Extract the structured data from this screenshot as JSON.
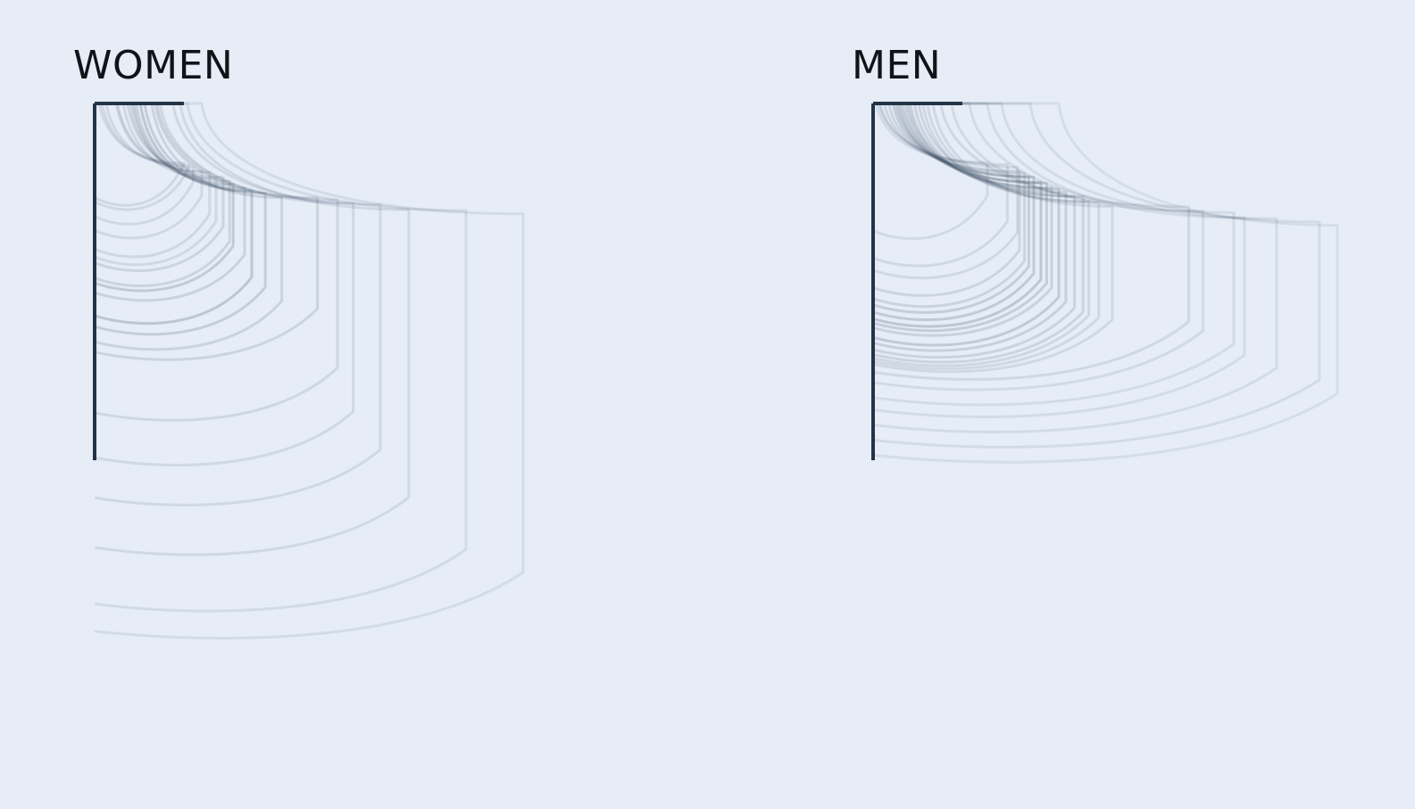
{
  "colors": {
    "background": "#e6edf7",
    "axis": "#243447",
    "curve": "#2f4257"
  },
  "chart_data": [
    {
      "type": "line",
      "title": "WOMEN",
      "curves": [
        {
          "top": 0.06,
          "right": 1.25,
          "bottom": 1.55,
          "drop": 0.1,
          "opacity": 0.12
        },
        {
          "top": 0.1,
          "right": 1.32,
          "bottom": 1.62,
          "drop": 0.09,
          "opacity": 0.12
        },
        {
          "top": 0.16,
          "right": 1.38,
          "bottom": 1.86,
          "drop": 0.08,
          "opacity": 0.12
        },
        {
          "top": 0.3,
          "right": 1.5,
          "bottom": 2.09,
          "drop": 0.1,
          "opacity": 0.12
        },
        {
          "top": 0.32,
          "right": 1.61,
          "bottom": 2.4,
          "drop": 0.08,
          "opacity": 0.13
        },
        {
          "top": 0.4,
          "right": 1.7,
          "bottom": 2.53,
          "drop": 0.13,
          "opacity": 0.12
        },
        {
          "top": 0.46,
          "right": 1.8,
          "bottom": 2.63,
          "drop": 0.07,
          "opacity": 0.14
        },
        {
          "top": 0.5,
          "right": 1.89,
          "bottom": 2.88,
          "drop": 0.09,
          "opacity": 0.14
        },
        {
          "top": 0.54,
          "right": 1.94,
          "bottom": 2.96,
          "drop": 0.1,
          "opacity": 0.2
        },
        {
          "top": 0.58,
          "right": 2.1,
          "bottom": 3.12,
          "drop": 0.12,
          "opacity": 0.16
        },
        {
          "top": 0.64,
          "right": 2.2,
          "bottom": 3.5,
          "drop": 0.12,
          "opacity": 0.22
        },
        {
          "top": 0.7,
          "right": 2.39,
          "bottom": 3.68,
          "drop": 0.11,
          "opacity": 0.18
        },
        {
          "top": 0.8,
          "right": 2.62,
          "bottom": 3.93,
          "drop": 0.14,
          "opacity": 0.15
        },
        {
          "top": 0.85,
          "right": 3.12,
          "bottom": 4.1,
          "drop": 0.1,
          "opacity": 0.14
        },
        {
          "top": 0.88,
          "right": 3.4,
          "bottom": 5.1,
          "drop": 0.09,
          "opacity": 0.13
        },
        {
          "top": 0.92,
          "right": 3.62,
          "bottom": 5.84,
          "drop": 0.1,
          "opacity": 0.12
        },
        {
          "top": 1.1,
          "right": 4.0,
          "bottom": 6.5,
          "drop": 0.08,
          "opacity": 0.12
        },
        {
          "top": 1.2,
          "right": 4.4,
          "bottom": 7.32,
          "drop": 0.12,
          "opacity": 0.12
        },
        {
          "top": 1.3,
          "right": 5.2,
          "bottom": 8.25,
          "drop": 0.09,
          "opacity": 0.11
        },
        {
          "top": 1.5,
          "right": 6.0,
          "bottom": 8.7,
          "drop": 0.1,
          "opacity": 0.1
        }
      ]
    },
    {
      "type": "line",
      "title": "MEN",
      "curves": [
        {
          "top": 0.04,
          "right": 1.6,
          "bottom": 2.1,
          "drop": 0.09,
          "opacity": 0.11
        },
        {
          "top": 0.08,
          "right": 1.88,
          "bottom": 2.55,
          "drop": 0.08,
          "opacity": 0.12
        },
        {
          "top": 0.1,
          "right": 2.02,
          "bottom": 2.75,
          "drop": 0.08,
          "opacity": 0.12
        },
        {
          "top": 0.16,
          "right": 2.05,
          "bottom": 3.04,
          "drop": 0.1,
          "opacity": 0.14
        },
        {
          "top": 0.22,
          "right": 2.12,
          "bottom": 3.22,
          "drop": 0.09,
          "opacity": 0.15
        },
        {
          "top": 0.28,
          "right": 2.18,
          "bottom": 3.32,
          "drop": 0.1,
          "opacity": 0.18
        },
        {
          "top": 0.32,
          "right": 2.25,
          "bottom": 3.44,
          "drop": 0.07,
          "opacity": 0.2
        },
        {
          "top": 0.36,
          "right": 2.35,
          "bottom": 3.55,
          "drop": 0.11,
          "opacity": 0.22
        },
        {
          "top": 0.4,
          "right": 2.43,
          "bottom": 3.62,
          "drop": 0.08,
          "opacity": 0.18
        },
        {
          "top": 0.44,
          "right": 2.5,
          "bottom": 3.7,
          "drop": 0.11,
          "opacity": 0.16
        },
        {
          "top": 0.48,
          "right": 2.6,
          "bottom": 3.86,
          "drop": 0.09,
          "opacity": 0.2
        },
        {
          "top": 0.52,
          "right": 2.7,
          "bottom": 3.95,
          "drop": 0.1,
          "opacity": 0.17
        },
        {
          "top": 0.58,
          "right": 2.82,
          "bottom": 4.06,
          "drop": 0.12,
          "opacity": 0.15
        },
        {
          "top": 0.64,
          "right": 2.94,
          "bottom": 4.14,
          "drop": 0.08,
          "opacity": 0.14
        },
        {
          "top": 0.7,
          "right": 3.02,
          "bottom": 4.2,
          "drop": 0.12,
          "opacity": 0.13
        },
        {
          "top": 0.76,
          "right": 3.16,
          "bottom": 4.25,
          "drop": 0.09,
          "opacity": 0.12
        },
        {
          "top": 0.84,
          "right": 3.35,
          "bottom": 4.3,
          "drop": 0.11,
          "opacity": 0.12
        },
        {
          "top": 0.95,
          "right": 4.42,
          "bottom": 4.43,
          "drop": 0.07,
          "opacity": 0.12
        },
        {
          "top": 1.1,
          "right": 4.62,
          "bottom": 4.6,
          "drop": 0.1,
          "opacity": 0.11
        },
        {
          "top": 1.35,
          "right": 5.05,
          "bottom": 4.85,
          "drop": 0.08,
          "opacity": 0.1
        },
        {
          "top": 1.6,
          "right": 5.2,
          "bottom": 5.05,
          "drop": 0.12,
          "opacity": 0.1
        },
        {
          "top": 1.8,
          "right": 5.65,
          "bottom": 5.3,
          "drop": 0.09,
          "opacity": 0.1
        },
        {
          "top": 2.2,
          "right": 6.25,
          "bottom": 5.55,
          "drop": 0.1,
          "opacity": 0.1
        },
        {
          "top": 2.6,
          "right": 6.5,
          "bottom": 5.8,
          "drop": 0.11,
          "opacity": 0.09
        }
      ]
    }
  ]
}
